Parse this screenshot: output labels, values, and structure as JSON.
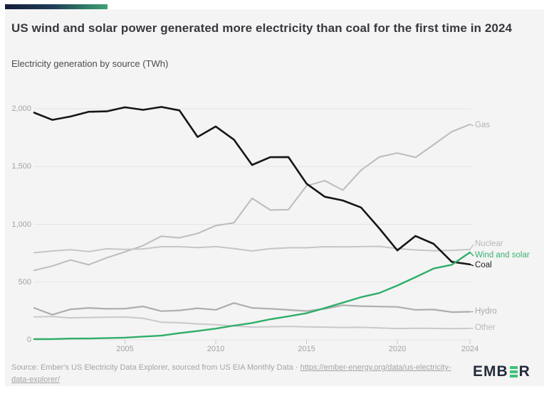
{
  "header": {
    "title": "US wind and solar power generated more electricity than coal for the first time in 2024",
    "subtitle": "Electricity generation by source (TWh)"
  },
  "footer": {
    "source_prefix": "Source: Ember's US Electricity Data Explorer, sourced from US EIA Monthly Data · ",
    "source_link": "https://ember-energy.org/data/us-electricity-data-explorer/",
    "logo_prefix": "EMB",
    "logo_suffix": "R"
  },
  "colors": {
    "accent_green": "#3da273",
    "accent_navy": "#141f3c",
    "card_background": "#f4f4f4",
    "gridline": "#e3e3e3",
    "axis_text": "#a2a2a2"
  },
  "chart_data": {
    "type": "line",
    "title": "US wind and solar power generated more electricity than coal for the first time in 2024",
    "subtitle": "Electricity generation by source (TWh)",
    "unit": "TWh",
    "xlabel": "",
    "ylabel": "Electricity generation (TWh)",
    "xlim": [
      2000,
      2024
    ],
    "ylim": [
      0,
      2000
    ],
    "grid": "horizontal",
    "legend_position": "right-end-labels",
    "x": [
      2000,
      2001,
      2002,
      2003,
      2004,
      2005,
      2006,
      2007,
      2008,
      2009,
      2010,
      2011,
      2012,
      2013,
      2014,
      2015,
      2016,
      2017,
      2018,
      2019,
      2020,
      2021,
      2022,
      2023,
      2024
    ],
    "xticks": [
      2005,
      2010,
      2015,
      2020,
      2024
    ],
    "xtick_labels": [
      "2005",
      "2010",
      "2015",
      "2020",
      "2024"
    ],
    "yticks": [
      0,
      500,
      1000,
      1500,
      2000
    ],
    "ytick_labels": [
      "0",
      "500",
      "1,000",
      "1,500",
      "2,000"
    ],
    "series": [
      {
        "name": "Gas",
        "color": "#bcbcbc",
        "label_color": "#b3b3b3",
        "stroke_width": 2,
        "label_dy": 2,
        "values": [
          601,
          639,
          691,
          650,
          710,
          761,
          816,
          897,
          883,
          921,
          988,
          1013,
          1225,
          1124,
          1127,
          1333,
          1378,
          1296,
          1468,
          1582,
          1617,
          1579,
          1689,
          1802,
          1865
        ]
      },
      {
        "name": "Nuclear",
        "color": "#c6c6c6",
        "label_color": "#b8b8b8",
        "stroke_width": 2,
        "label_dy": -7,
        "values": [
          754,
          769,
          780,
          764,
          788,
          782,
          787,
          806,
          806,
          799,
          807,
          790,
          769,
          789,
          797,
          797,
          806,
          805,
          807,
          809,
          790,
          778,
          772,
          775,
          782
        ]
      },
      {
        "name": "Hydro",
        "color": "#aeaeae",
        "label_color": "#a8a8a8",
        "stroke_width": 2.2,
        "label_dy": 0,
        "values": [
          276,
          217,
          264,
          276,
          268,
          270,
          289,
          248,
          255,
          273,
          260,
          319,
          276,
          269,
          259,
          249,
          268,
          300,
          292,
          288,
          285,
          260,
          262,
          240,
          243
        ]
      },
      {
        "name": "Other",
        "color": "#c9c9c9",
        "label_color": "#b8b8b8",
        "stroke_width": 2,
        "label_dy": 0,
        "values": [
          199,
          202,
          190,
          193,
          196,
          197,
          187,
          152,
          148,
          138,
          132,
          120,
          111,
          113,
          116,
          112,
          110,
          107,
          108,
          103,
          98,
          100,
          99,
          97,
          99
        ]
      },
      {
        "name": "Coal",
        "color": "#161616",
        "label_color": "#1c1c1c",
        "stroke_width": 2.6,
        "label_dy": 2,
        "values": [
          1966,
          1904,
          1933,
          1974,
          1978,
          2013,
          1991,
          2016,
          1986,
          1756,
          1847,
          1733,
          1514,
          1581,
          1582,
          1352,
          1239,
          1206,
          1146,
          966,
          774,
          899,
          831,
          675,
          653
        ]
      },
      {
        "name": "Wind and solar",
        "color": "#2fae68",
        "label_color": "#3cb273",
        "stroke_width": 2.4,
        "label_dy": 5,
        "values": [
          6,
          7,
          11,
          12,
          15,
          19,
          28,
          36,
          58,
          76,
          97,
          123,
          146,
          178,
          204,
          230,
          275,
          322,
          369,
          405,
          470,
          542,
          617,
          650,
          757
        ]
      }
    ]
  }
}
